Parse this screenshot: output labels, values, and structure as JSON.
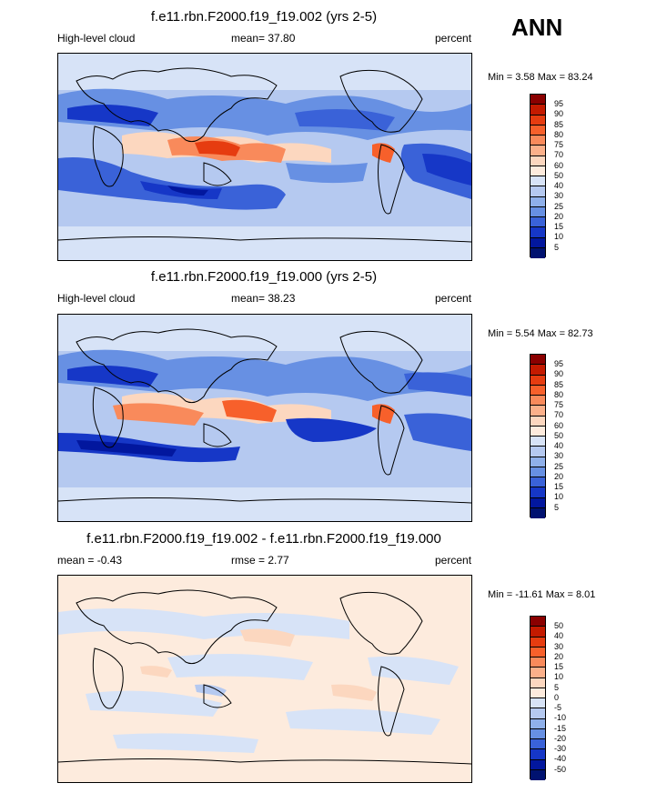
{
  "season": "ANN",
  "panels": [
    {
      "title": "f.e11.rbn.F2000.f19_f19.002 (yrs 2-5)",
      "left_label": "High-level cloud",
      "mean": "mean=  37.80",
      "units": "percent",
      "minmax": "Min =   3.58 Max =  83.24"
    },
    {
      "title": "f.e11.rbn.F2000.f19_f19.000 (yrs 2-5)",
      "left_label": "High-level cloud",
      "mean": "mean=  38.23",
      "units": "percent",
      "minmax": "Min =   5.54 Max =  82.73"
    },
    {
      "title": "f.e11.rbn.F2000.f19_f19.002 - f.e11.rbn.F2000.f19_f19.000",
      "left_label": "mean =  -0.43",
      "mean": "rmse =   2.77",
      "units": "percent",
      "minmax": "Min = -11.61 Max =   8.01"
    }
  ],
  "legend_field": {
    "levels": [
      "95",
      "90",
      "85",
      "80",
      "75",
      "70",
      "60",
      "50",
      "40",
      "30",
      "25",
      "20",
      "15",
      "10",
      "5"
    ],
    "colors": [
      "#8a0000",
      "#c41a00",
      "#e63c10",
      "#f7602b",
      "#f98a5b",
      "#fbb08a",
      "#fcd7bf",
      "#fdebdd",
      "#d7e3f7",
      "#b5c9f0",
      "#8fb0ea",
      "#6790e3",
      "#3a62d8",
      "#1637c7",
      "#02179e",
      "#001270"
    ]
  },
  "legend_diff": {
    "levels": [
      "50",
      "40",
      "30",
      "20",
      "15",
      "10",
      "5",
      "0",
      "-5",
      "-10",
      "-15",
      "-20",
      "-30",
      "-40",
      "-50"
    ],
    "colors": [
      "#8a0000",
      "#c41a00",
      "#e63c10",
      "#f7602b",
      "#f98a5b",
      "#fbb08a",
      "#fcd7bf",
      "#fdebdd",
      "#d7e3f7",
      "#b5c9f0",
      "#8fb0ea",
      "#6790e3",
      "#3a62d8",
      "#1637c7",
      "#02179e",
      "#001270"
    ]
  }
}
